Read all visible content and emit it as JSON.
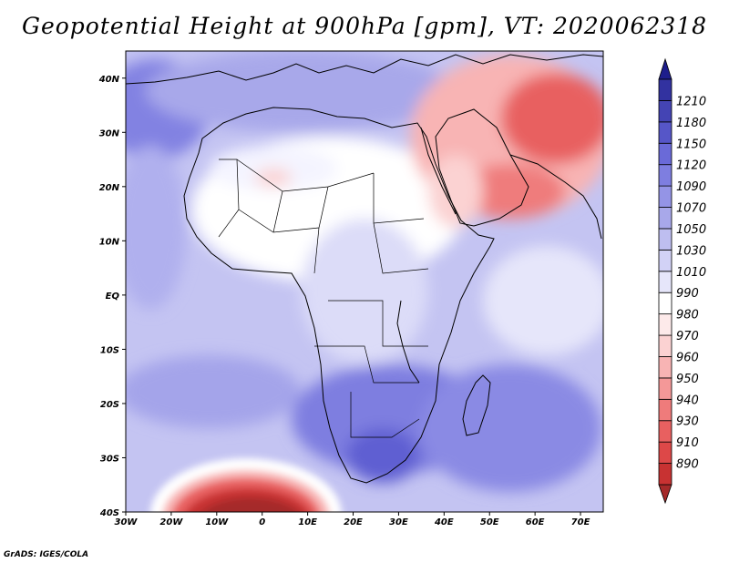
{
  "title": "Geopotential Height at 900hPa [gpm], VT: 2020062318",
  "credit": "GrADS: IGES/COLA",
  "colors": {
    "background": "#ffffff",
    "land_outline": "#000000",
    "scale": [
      "#a52a2a",
      "#c83232",
      "#dd4848",
      "#e86060",
      "#ef7b7b",
      "#f49898",
      "#f8b4b4",
      "#fbd2d2",
      "#fdeaea",
      "#ffffff",
      "#e6e6fa",
      "#d2d2f6",
      "#bebef0",
      "#a8a8ea",
      "#9494e6",
      "#7e7ee0",
      "#6a6ad8",
      "#5656c8",
      "#4444b4",
      "#3232a0",
      "#1e1e8c"
    ]
  },
  "map_data": {
    "projection": "lat-lon",
    "lon_range": [
      -30,
      75
    ],
    "lat_range": [
      -40,
      45
    ],
    "lon_ticks": [
      "30W",
      "20W",
      "10W",
      "0",
      "10E",
      "20E",
      "30E",
      "40E",
      "50E",
      "60E",
      "70E"
    ],
    "lat_ticks": [
      "40S",
      "30S",
      "20S",
      "10S",
      "EQ",
      "10N",
      "20N",
      "30N",
      "40N"
    ],
    "colorbar": {
      "levels": [
        "890",
        "910",
        "930",
        "940",
        "950",
        "960",
        "970",
        "980",
        "990",
        "1010",
        "1030",
        "1050",
        "1070",
        "1090",
        "1120",
        "1150",
        "1180",
        "1210"
      ]
    }
  }
}
